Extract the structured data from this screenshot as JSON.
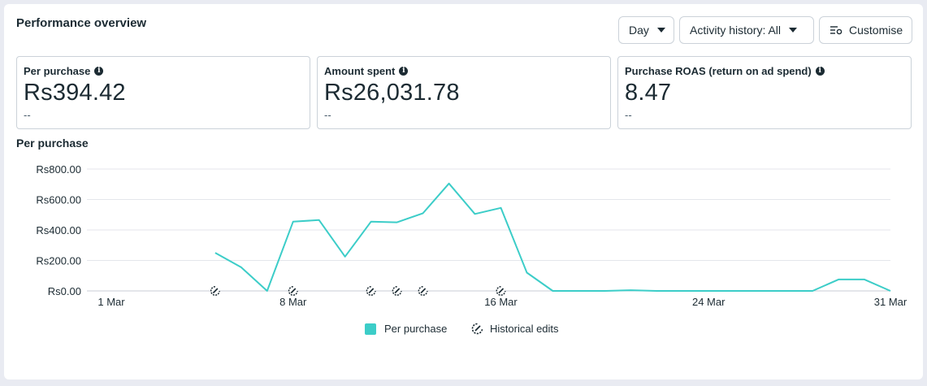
{
  "header": {
    "title": "Performance overview",
    "day_label": "Day",
    "activity_label": "Activity history: All",
    "customise_label": "Customise"
  },
  "cards": [
    {
      "label": "Per purchase",
      "value": "Rs394.42",
      "sub": "--"
    },
    {
      "label": "Amount spent",
      "value": "Rs26,031.78",
      "sub": "--"
    },
    {
      "label": "Purchase ROAS (return on ad spend)",
      "value": "8.47",
      "sub": "--"
    }
  ],
  "chart_title": "Per purchase",
  "colors": {
    "series": "#3ccdc8",
    "grid": "#e4e6eb",
    "text": "#1c2b33"
  },
  "chart_data": {
    "type": "line",
    "ylim": [
      0,
      800
    ],
    "y_ticks": [
      "Rs0.00",
      "Rs200.00",
      "Rs400.00",
      "Rs600.00",
      "Rs800.00"
    ],
    "x_tick_labels": [
      {
        "day": 1,
        "label": "1 Mar"
      },
      {
        "day": 8,
        "label": "8 Mar"
      },
      {
        "day": 16,
        "label": "16 Mar"
      },
      {
        "day": 24,
        "label": "24 Mar"
      },
      {
        "day": 31,
        "label": "31 Mar"
      }
    ],
    "series": [
      {
        "name": "Per purchase",
        "points": [
          [
            5,
            250
          ],
          [
            6,
            155
          ],
          [
            7,
            0
          ],
          [
            8,
            455
          ],
          [
            9,
            465
          ],
          [
            10,
            225
          ],
          [
            11,
            455
          ],
          [
            12,
            450
          ],
          [
            13,
            510
          ],
          [
            14,
            705
          ],
          [
            15,
            505
          ],
          [
            16,
            545
          ],
          [
            17,
            120
          ],
          [
            18,
            0
          ],
          [
            19,
            0
          ],
          [
            20,
            0
          ],
          [
            21,
            5
          ],
          [
            22,
            0
          ],
          [
            23,
            0
          ],
          [
            24,
            0
          ],
          [
            25,
            0
          ],
          [
            26,
            0
          ],
          [
            27,
            0
          ],
          [
            28,
            0
          ],
          [
            29,
            75
          ],
          [
            30,
            75
          ],
          [
            31,
            0
          ]
        ]
      }
    ],
    "historical_edit_days": [
      5,
      8,
      11,
      12,
      13,
      16
    ],
    "legend": [
      "Per purchase",
      "Historical edits"
    ]
  }
}
